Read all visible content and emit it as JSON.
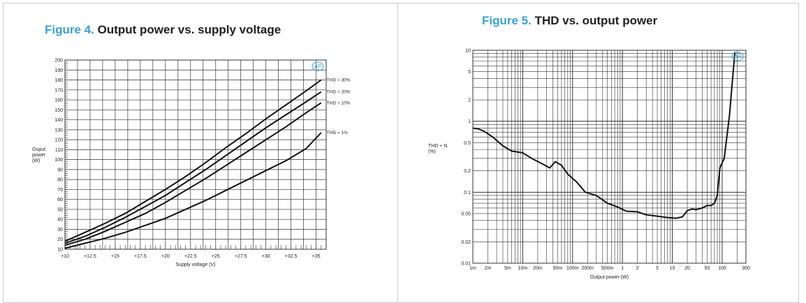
{
  "figure4": {
    "caption_number": "Figure 4.",
    "caption_title": "Output power vs. supply voltage"
  },
  "figure5": {
    "caption_number": "Figure 5.",
    "caption_title": "THD vs. output power"
  },
  "colors": {
    "caption_accent": "#3aa1d6",
    "curve": "#111111",
    "grid": "#333333",
    "border": "#c9ccd0"
  },
  "chart_data": [
    {
      "type": "line",
      "title": "Output power vs. supply voltage",
      "xlabel": "Supply voltage (V)",
      "ylabel": "Ouput power (W)",
      "xlim": [
        10,
        36
      ],
      "ylim": [
        10,
        200
      ],
      "x_ticks": [
        "+10",
        "+12.5",
        "+15",
        "+17.5",
        "+20",
        "+22.5",
        "+25",
        "+27.5",
        "+30",
        "+32.5",
        "+35"
      ],
      "y_ticks": [
        "10",
        "20",
        "30",
        "40",
        "50",
        "60",
        "70",
        "80",
        "90",
        "100",
        "110",
        "120",
        "130",
        "140",
        "150",
        "160",
        "170",
        "180",
        "190",
        "200"
      ],
      "grid": true,
      "logo": "AP",
      "series": [
        {
          "name": "THD = 30%",
          "x": [
            10,
            12,
            14,
            16,
            18,
            20,
            22,
            24,
            26,
            28,
            30,
            32,
            34,
            35.5
          ],
          "y": [
            18,
            27,
            36,
            46,
            58,
            70,
            83,
            97,
            112,
            126,
            141,
            155,
            169,
            180
          ]
        },
        {
          "name": "THD = 20%",
          "x": [
            10,
            12,
            14,
            16,
            18,
            20,
            22,
            24,
            26,
            28,
            30,
            32,
            34,
            35.5
          ],
          "y": [
            16,
            23,
            32,
            42,
            53,
            64,
            77,
            90,
            104,
            118,
            132,
            145,
            158,
            168
          ]
        },
        {
          "name": "THD = 10%",
          "x": [
            10,
            12,
            14,
            16,
            18,
            20,
            22,
            24,
            26,
            28,
            30,
            32,
            34,
            35.5
          ],
          "y": [
            14,
            20,
            28,
            37,
            46,
            57,
            69,
            81,
            94,
            107,
            120,
            133,
            147,
            157
          ]
        },
        {
          "name": "THD = 1%",
          "x": [
            10,
            12,
            14,
            16,
            18,
            20,
            22,
            24,
            26,
            28,
            30,
            32,
            34,
            35.5
          ],
          "y": [
            11,
            16,
            21,
            27,
            34,
            41,
            50,
            59,
            69,
            79,
            89,
            99,
            111,
            127
          ]
        }
      ]
    },
    {
      "type": "line",
      "title": "THD vs. output power",
      "xlabel": "Output power (W)",
      "ylabel": "THD + N (%)",
      "x_scale": "log",
      "y_scale": "log",
      "xlim": [
        0.001,
        300
      ],
      "ylim": [
        0.01,
        10
      ],
      "x_ticks": [
        "1m",
        "2m",
        "5m",
        "10m",
        "20m",
        "50m",
        "100m",
        "200m",
        "500m",
        "1",
        "2",
        "5",
        "10",
        "20",
        "50",
        "100",
        "300"
      ],
      "y_ticks": [
        "0.01",
        "0.02",
        "0.05",
        "0.1",
        "0.2",
        "0.5",
        "1",
        "2",
        "5",
        "10"
      ],
      "grid": true,
      "logo": "AP",
      "series": [
        {
          "x": [
            0.001,
            0.0013,
            0.0017,
            0.0025,
            0.004,
            0.006,
            0.01,
            0.015,
            0.025,
            0.035,
            0.045,
            0.06,
            0.08,
            0.12,
            0.18,
            0.3,
            0.5,
            0.8,
            1.2,
            2,
            3,
            5,
            8,
            12,
            16,
            20,
            25,
            30,
            40,
            50,
            60,
            70,
            80,
            90,
            110,
            140,
            180
          ],
          "y": [
            0.8,
            0.78,
            0.72,
            0.6,
            0.45,
            0.38,
            0.36,
            0.3,
            0.25,
            0.22,
            0.27,
            0.24,
            0.18,
            0.14,
            0.1,
            0.09,
            0.07,
            0.062,
            0.054,
            0.053,
            0.048,
            0.046,
            0.044,
            0.043,
            0.045,
            0.055,
            0.058,
            0.057,
            0.06,
            0.065,
            0.065,
            0.07,
            0.09,
            0.22,
            0.3,
            1.2,
            9.5
          ]
        }
      ]
    }
  ]
}
